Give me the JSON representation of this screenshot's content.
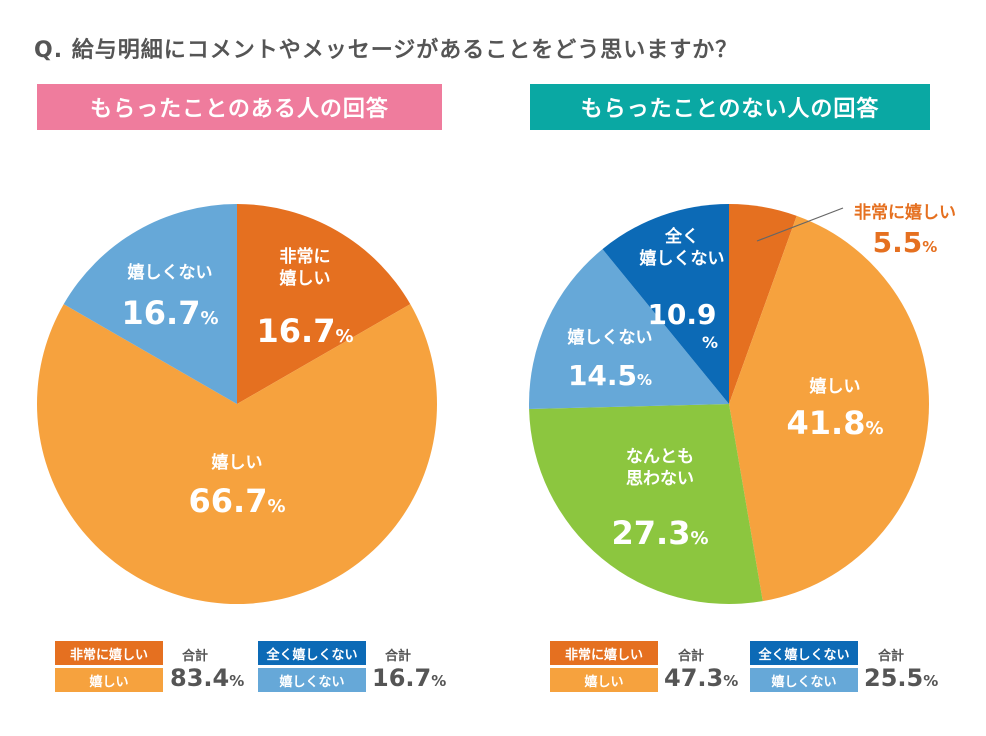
{
  "question": "Q. 給与明細にコメントやメッセージがあることをどう思いますか？",
  "banners": {
    "left": "もらったことのある人の回答",
    "right": "もらったことのない人の回答"
  },
  "colors": {
    "very_happy": "#e57020",
    "happy": "#f6a23e",
    "neutral": "#8cc63f",
    "not_happy": "#66a8d8",
    "not_at_all": "#0c6ab6",
    "banner_left": "#ef7c9d",
    "banner_right": "#0aa8a3",
    "text_gray": "#555555"
  },
  "chart_data": [
    {
      "type": "pie",
      "title": "もらったことのある人の回答",
      "start": "top",
      "direction": "clockwise",
      "slices": [
        {
          "key": "very_happy",
          "label": "非常に嬉しい",
          "label_lines": [
            "非常に",
            "嬉しい"
          ],
          "value": 16.7,
          "display": "16.7"
        },
        {
          "key": "happy",
          "label": "嬉しい",
          "label_lines": [
            "嬉しい"
          ],
          "value": 66.7,
          "display": "66.7"
        },
        {
          "key": "not_happy",
          "label": "嬉しくない",
          "label_lines": [
            "嬉しくない"
          ],
          "value": 16.7,
          "display": "16.7"
        }
      ],
      "totals": [
        {
          "items": [
            "非常に嬉しい",
            "嬉しい"
          ],
          "label": "合計",
          "value": "83.4"
        },
        {
          "items": [
            "全く嬉しくない",
            "嬉しくない"
          ],
          "label": "合計",
          "value": "16.7"
        }
      ]
    },
    {
      "type": "pie",
      "title": "もらったことのない人の回答",
      "start": "top",
      "direction": "clockwise",
      "slices": [
        {
          "key": "very_happy",
          "label": "非常に嬉しい",
          "label_lines": [
            "非常に嬉しい"
          ],
          "value": 5.5,
          "display": "5.5",
          "outside": true
        },
        {
          "key": "happy",
          "label": "嬉しい",
          "label_lines": [
            "嬉しい"
          ],
          "value": 41.8,
          "display": "41.8"
        },
        {
          "key": "neutral",
          "label": "なんとも思わない",
          "label_lines": [
            "なんとも",
            "思わない"
          ],
          "value": 27.3,
          "display": "27.3"
        },
        {
          "key": "not_happy",
          "label": "嬉しくない",
          "label_lines": [
            "嬉しくない"
          ],
          "value": 14.5,
          "display": "14.5"
        },
        {
          "key": "not_at_all",
          "label": "全く嬉しくない",
          "label_lines": [
            "全く",
            "嬉しくない"
          ],
          "value": 10.9,
          "display": "10.9"
        }
      ],
      "totals": [
        {
          "items": [
            "非常に嬉しい",
            "嬉しい"
          ],
          "label": "合計",
          "value": "47.3"
        },
        {
          "items": [
            "全く嬉しくない",
            "嬉しくない"
          ],
          "label": "合計",
          "value": "25.5"
        }
      ]
    }
  ],
  "legend": {
    "very_happy": "非常に嬉しい",
    "happy": "嬉しい",
    "not_at_all": "全く嬉しくない",
    "not_happy": "嬉しくない",
    "sum_label": "合計",
    "percent": "%"
  }
}
